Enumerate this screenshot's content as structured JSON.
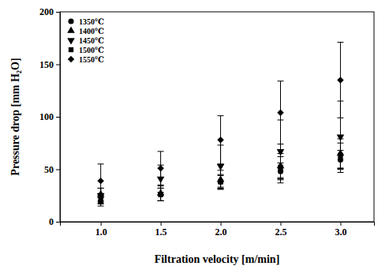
{
  "chart_data": {
    "type": "scatter",
    "x_label": "Filtration velocity [m/min]",
    "y_label": "Pressure drop [mm H₂O]",
    "x": [
      1.0,
      1.5,
      2.0,
      2.5,
      3.0
    ],
    "xlim": [
      0.66,
      3.28
    ],
    "xticks": [
      {
        "value": 1,
        "label": "1.0"
      },
      1.5,
      {
        "value": 2,
        "label": "2.0"
      },
      2.5,
      {
        "value": 3,
        "label": "3.0"
      }
    ],
    "ylim": [
      0,
      200
    ],
    "yticks": [
      0,
      50,
      100,
      150,
      200
    ],
    "legend": "upper left",
    "series": [
      {
        "name": "1350℃",
        "color": "#000000",
        "marker": "circle",
        "values": [
          19,
          26,
          38,
          48,
          59
        ],
        "errors": [
          4,
          6,
          7,
          8,
          9
        ]
      },
      {
        "name": "1400℃",
        "color": "#000000",
        "marker": "triangle",
        "values": [
          26,
          27,
          40,
          53,
          65
        ],
        "errors": [
          6,
          7,
          9,
          12,
          14
        ]
      },
      {
        "name": "1450℃",
        "color": "#000000",
        "marker": "triangle-down",
        "values": [
          25,
          41,
          53,
          67,
          81
        ],
        "errors": [
          7,
          13,
          20,
          30,
          34
        ]
      },
      {
        "name": "1500℃",
        "color": "#000000",
        "marker": "square",
        "values": [
          22,
          26,
          38,
          52,
          63
        ],
        "errors": [
          5,
          6,
          6,
          10,
          12
        ]
      },
      {
        "name": "1550℃",
        "color": "#000000",
        "marker": "diamond",
        "values": [
          39,
          51,
          78,
          104,
          135
        ],
        "errors": [
          16,
          16,
          23,
          30,
          36
        ]
      }
    ]
  }
}
